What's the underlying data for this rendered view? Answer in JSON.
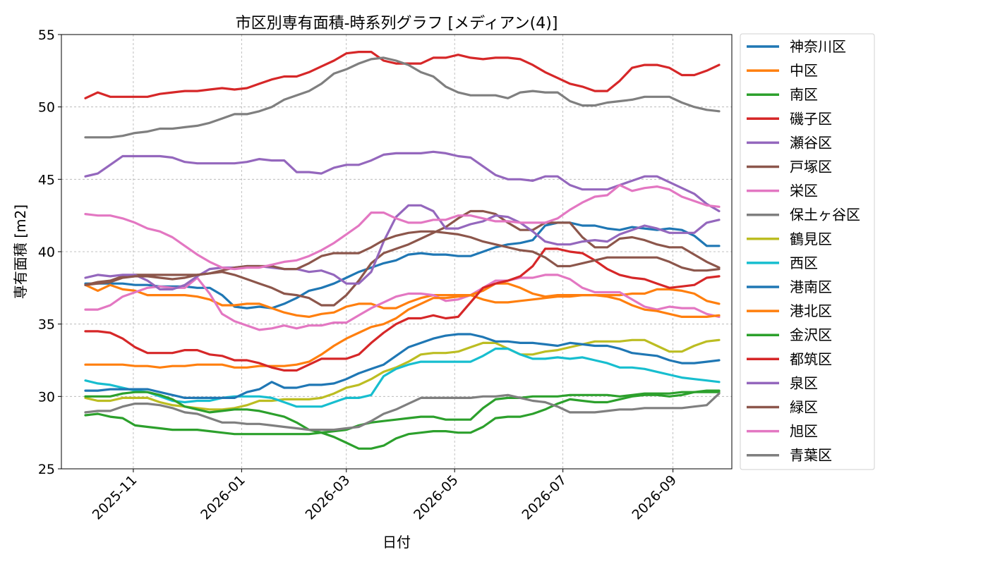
{
  "chart_data": {
    "type": "line",
    "title": "市区別専有面積-時系列グラフ [メディアン(4)]",
    "xlabel": "日付",
    "ylabel": "専有面積 [m2]",
    "ylim": [
      25,
      55
    ],
    "yticks": [
      25,
      30,
      35,
      40,
      45,
      50,
      55
    ],
    "xticks": [
      "2025-11",
      "2026-01",
      "2026-03",
      "2026-05",
      "2026-07",
      "2026-09"
    ],
    "grid": true,
    "legend_position": "outside-right",
    "x": [
      "2025-10-05",
      "2025-10-12",
      "2025-10-19",
      "2025-10-26",
      "2025-11-02",
      "2025-11-09",
      "2025-11-16",
      "2025-11-23",
      "2025-11-30",
      "2025-12-07",
      "2025-12-14",
      "2025-12-21",
      "2025-12-28",
      "2026-01-04",
      "2026-01-11",
      "2026-01-18",
      "2026-01-25",
      "2026-02-01",
      "2026-02-08",
      "2026-02-15",
      "2026-02-22",
      "2026-03-01",
      "2026-03-08",
      "2026-03-15",
      "2026-03-22",
      "2026-03-29",
      "2026-04-05",
      "2026-04-12",
      "2026-04-19",
      "2026-04-26",
      "2026-05-03",
      "2026-05-10",
      "2026-05-17",
      "2026-05-24",
      "2026-05-31",
      "2026-06-07",
      "2026-06-14",
      "2026-06-21",
      "2026-06-28",
      "2026-07-05",
      "2026-07-12",
      "2026-07-19",
      "2026-07-26",
      "2026-08-02",
      "2026-08-09",
      "2026-08-16",
      "2026-08-23",
      "2026-08-30",
      "2026-09-06",
      "2026-09-13",
      "2026-09-20",
      "2026-09-27"
    ],
    "series": [
      {
        "name": "神奈川区",
        "color": "#1f77b4",
        "values": [
          37.8,
          37.8,
          37.8,
          37.8,
          37.7,
          37.7,
          37.6,
          37.6,
          37.6,
          37.5,
          37.5,
          37.0,
          36.2,
          36.1,
          36.2,
          36.1,
          36.4,
          36.8,
          37.3,
          37.5,
          37.8,
          38.2,
          38.6,
          38.9,
          39.2,
          39.4,
          39.8,
          39.9,
          39.8,
          39.8,
          39.7,
          39.7,
          40.0,
          40.3,
          40.5,
          40.6,
          40.8,
          41.8,
          42.0,
          42.0,
          41.8,
          41.8,
          41.6,
          41.5,
          41.7,
          41.6,
          41.5,
          41.6,
          41.5,
          41.1,
          40.4,
          40.4
        ]
      },
      {
        "name": "中区",
        "color": "#ff7f0e",
        "values": [
          37.7,
          37.3,
          37.7,
          37.4,
          37.3,
          37.0,
          37.0,
          37.0,
          37.0,
          36.9,
          36.7,
          36.3,
          36.3,
          36.4,
          36.4,
          36.1,
          35.8,
          35.6,
          35.5,
          35.7,
          35.8,
          36.2,
          36.4,
          36.4,
          36.1,
          36.1,
          36.5,
          36.8,
          37.0,
          37.0,
          37.0,
          37.0,
          36.7,
          36.5,
          36.5,
          36.6,
          36.7,
          36.8,
          36.9,
          36.9,
          37.0,
          37.0,
          37.0,
          37.0,
          37.1,
          37.1,
          37.4,
          37.4,
          37.3,
          37.1,
          36.6,
          36.4
        ]
      },
      {
        "name": "南区",
        "color": "#2ca02c",
        "values": [
          28.7,
          28.8,
          28.6,
          28.5,
          28.0,
          27.9,
          27.8,
          27.7,
          27.7,
          27.7,
          27.6,
          27.5,
          27.4,
          27.4,
          27.4,
          27.4,
          27.4,
          27.4,
          27.4,
          27.5,
          27.6,
          27.7,
          28.0,
          28.2,
          28.3,
          28.4,
          28.5,
          28.6,
          28.6,
          28.4,
          28.4,
          28.4,
          29.2,
          29.8,
          29.9,
          29.9,
          30.0,
          30.0,
          30.0,
          30.1,
          30.1,
          30.1,
          30.1,
          30.0,
          30.1,
          30.2,
          30.2,
          30.2,
          30.3,
          30.3,
          30.4,
          30.4
        ]
      },
      {
        "name": "磯子区",
        "color": "#d62728",
        "values": [
          50.6,
          51.0,
          50.7,
          50.7,
          50.7,
          50.7,
          50.9,
          51.0,
          51.1,
          51.1,
          51.2,
          51.3,
          51.2,
          51.3,
          51.6,
          51.9,
          52.1,
          52.1,
          52.4,
          52.8,
          53.2,
          53.7,
          53.8,
          53.8,
          53.2,
          53.0,
          53.0,
          53.0,
          53.4,
          53.4,
          53.6,
          53.4,
          53.3,
          53.4,
          53.4,
          53.3,
          52.9,
          52.4,
          52.0,
          51.6,
          51.4,
          51.1,
          51.1,
          51.8,
          52.7,
          52.9,
          52.9,
          52.7,
          52.2,
          52.2,
          52.5,
          52.9
        ]
      },
      {
        "name": "瀬谷区",
        "color": "#9467bd",
        "values": [
          45.2,
          45.4,
          46.0,
          46.6,
          46.6,
          46.6,
          46.6,
          46.5,
          46.2,
          46.1,
          46.1,
          46.1,
          46.1,
          46.2,
          46.4,
          46.3,
          46.3,
          45.5,
          45.5,
          45.4,
          45.8,
          46.0,
          46.0,
          46.3,
          46.7,
          46.8,
          46.8,
          46.8,
          46.9,
          46.8,
          46.6,
          46.5,
          45.9,
          45.3,
          45.0,
          45.0,
          44.9,
          45.2,
          45.2,
          44.6,
          44.3,
          44.3,
          44.3,
          44.6,
          44.9,
          45.2,
          45.2,
          44.8,
          44.4,
          44.0,
          43.3,
          42.8
        ]
      },
      {
        "name": "戸塚区",
        "color": "#8c564b",
        "values": [
          37.7,
          37.9,
          38.0,
          38.3,
          38.4,
          38.4,
          38.4,
          38.4,
          38.4,
          38.4,
          38.5,
          38.6,
          38.4,
          38.1,
          37.8,
          37.5,
          37.1,
          37.0,
          36.8,
          36.3,
          36.3,
          37.0,
          38.0,
          39.2,
          39.9,
          40.2,
          40.5,
          40.9,
          41.3,
          41.7,
          42.3,
          42.8,
          42.8,
          42.6,
          42.0,
          41.5,
          41.5,
          42.0,
          42.0,
          42.0,
          41.0,
          40.3,
          40.3,
          40.9,
          41.0,
          40.8,
          40.5,
          40.3,
          40.3,
          39.8,
          39.3,
          38.9
        ]
      },
      {
        "name": "栄区",
        "color": "#e377c2",
        "values": [
          36.0,
          36.0,
          36.3,
          36.9,
          37.2,
          37.5,
          37.6,
          37.5,
          37.5,
          38.2,
          37.1,
          35.7,
          35.2,
          34.9,
          34.6,
          34.7,
          34.9,
          34.7,
          34.9,
          34.9,
          35.1,
          35.1,
          35.6,
          36.1,
          36.5,
          36.9,
          37.1,
          37.1,
          37.0,
          36.6,
          36.7,
          37.0,
          37.5,
          38.0,
          38.0,
          38.2,
          38.2,
          38.4,
          38.4,
          38.1,
          37.5,
          37.2,
          37.2,
          37.2,
          36.7,
          36.2,
          36.0,
          36.2,
          36.1,
          36.1,
          35.7,
          35.5
        ]
      },
      {
        "name": "保土ヶ谷区",
        "color": "#7f7f7f",
        "values": [
          47.9,
          47.9,
          47.9,
          48.0,
          48.2,
          48.3,
          48.5,
          48.5,
          48.6,
          48.7,
          48.9,
          49.2,
          49.5,
          49.5,
          49.7,
          50.0,
          50.5,
          50.8,
          51.1,
          51.6,
          52.3,
          52.6,
          53.0,
          53.3,
          53.4,
          53.2,
          52.9,
          52.4,
          52.1,
          51.4,
          51.0,
          50.8,
          50.8,
          50.8,
          50.6,
          51.0,
          51.1,
          51.0,
          51.0,
          50.4,
          50.1,
          50.1,
          50.3,
          50.4,
          50.5,
          50.7,
          50.7,
          50.7,
          50.3,
          50.0,
          49.8,
          49.7
        ]
      },
      {
        "name": "鶴見区",
        "color": "#bcbd22",
        "values": [
          29.9,
          29.7,
          29.7,
          29.9,
          29.9,
          29.9,
          29.6,
          29.4,
          29.3,
          29.2,
          29.1,
          29.1,
          29.2,
          29.4,
          29.7,
          29.7,
          29.8,
          29.8,
          29.8,
          29.9,
          30.2,
          30.6,
          30.8,
          31.2,
          31.7,
          32.0,
          32.4,
          32.9,
          33.0,
          33.0,
          33.1,
          33.4,
          33.7,
          33.7,
          33.3,
          32.9,
          32.9,
          33.1,
          33.2,
          33.4,
          33.6,
          33.8,
          33.8,
          33.8,
          33.9,
          33.9,
          33.5,
          33.1,
          33.1,
          33.5,
          33.8,
          33.9
        ]
      },
      {
        "name": "西区",
        "color": "#17becf",
        "values": [
          31.1,
          30.9,
          30.8,
          30.6,
          30.4,
          30.3,
          30.0,
          29.7,
          29.6,
          29.7,
          29.7,
          29.9,
          30.0,
          30.0,
          30.0,
          29.9,
          29.6,
          29.3,
          29.3,
          29.3,
          29.6,
          29.9,
          29.9,
          30.1,
          31.4,
          31.9,
          32.2,
          32.4,
          32.4,
          32.4,
          32.4,
          32.4,
          32.8,
          33.3,
          33.3,
          32.9,
          32.6,
          32.6,
          32.7,
          32.6,
          32.7,
          32.5,
          32.3,
          32.0,
          32.0,
          31.9,
          31.7,
          31.5,
          31.3,
          31.2,
          31.1,
          31.0
        ]
      },
      {
        "name": "港南区",
        "color": "#1f77b4",
        "values": [
          30.4,
          30.4,
          30.5,
          30.5,
          30.5,
          30.5,
          30.3,
          30.1,
          29.9,
          29.9,
          29.9,
          29.9,
          29.9,
          30.3,
          30.5,
          31.0,
          30.6,
          30.6,
          30.8,
          30.8,
          30.9,
          31.2,
          31.6,
          31.9,
          32.2,
          32.8,
          33.4,
          33.7,
          34.0,
          34.2,
          34.3,
          34.3,
          34.1,
          33.8,
          33.8,
          33.7,
          33.7,
          33.6,
          33.5,
          33.7,
          33.6,
          33.5,
          33.5,
          33.3,
          33.0,
          32.9,
          32.8,
          32.5,
          32.3,
          32.3,
          32.4,
          32.5
        ]
      },
      {
        "name": "港北区",
        "color": "#ff7f0e",
        "values": [
          32.2,
          32.2,
          32.2,
          32.2,
          32.1,
          32.1,
          32.0,
          32.1,
          32.1,
          32.2,
          32.2,
          32.2,
          32.0,
          32.0,
          32.1,
          32.1,
          32.1,
          32.2,
          32.4,
          32.9,
          33.5,
          34.0,
          34.4,
          34.8,
          35.0,
          35.4,
          36.0,
          36.4,
          36.8,
          36.8,
          36.9,
          37.0,
          37.3,
          37.8,
          37.8,
          37.5,
          37.1,
          36.9,
          37.0,
          37.0,
          37.0,
          37.0,
          36.9,
          36.7,
          36.3,
          36.0,
          35.9,
          35.7,
          35.5,
          35.5,
          35.5,
          35.6
        ]
      },
      {
        "name": "金沢区",
        "color": "#2ca02c",
        "values": [
          30.0,
          30.0,
          30.0,
          30.2,
          30.3,
          30.3,
          30.1,
          29.8,
          29.3,
          29.1,
          28.9,
          29.0,
          29.1,
          29.1,
          29.0,
          28.8,
          28.6,
          28.2,
          27.7,
          27.5,
          27.2,
          26.8,
          26.4,
          26.4,
          26.6,
          27.1,
          27.4,
          27.5,
          27.6,
          27.6,
          27.5,
          27.5,
          27.9,
          28.5,
          28.6,
          28.6,
          28.8,
          29.1,
          29.5,
          29.8,
          29.7,
          29.6,
          29.6,
          29.8,
          30.0,
          30.1,
          30.1,
          30.0,
          30.1,
          30.3,
          30.3,
          30.3
        ]
      },
      {
        "name": "都筑区",
        "color": "#d62728",
        "values": [
          34.5,
          34.5,
          34.4,
          34.0,
          33.4,
          33.0,
          33.0,
          33.0,
          33.2,
          33.2,
          32.9,
          32.8,
          32.5,
          32.5,
          32.3,
          32.0,
          31.8,
          31.8,
          32.2,
          32.6,
          32.6,
          32.6,
          32.9,
          33.7,
          34.4,
          35.0,
          35.4,
          35.4,
          35.6,
          35.4,
          35.5,
          36.5,
          37.5,
          37.8,
          38.0,
          38.3,
          39.0,
          40.2,
          40.2,
          40.0,
          39.9,
          39.4,
          38.8,
          38.4,
          38.2,
          38.1,
          37.8,
          37.5,
          37.6,
          37.7,
          38.2,
          38.3
        ]
      },
      {
        "name": "泉区",
        "color": "#9467bd",
        "values": [
          38.2,
          38.4,
          38.3,
          38.4,
          38.4,
          38.0,
          37.4,
          37.4,
          37.7,
          38.3,
          38.8,
          38.9,
          38.9,
          39.0,
          39.0,
          38.9,
          38.8,
          38.8,
          38.6,
          38.7,
          38.4,
          37.8,
          37.8,
          38.6,
          40.7,
          42.4,
          43.2,
          43.2,
          42.8,
          41.6,
          41.6,
          41.9,
          42.1,
          42.5,
          42.4,
          42.0,
          41.4,
          40.7,
          40.5,
          40.5,
          40.7,
          40.8,
          40.7,
          41.2,
          41.5,
          41.8,
          41.6,
          41.3,
          41.3,
          41.3,
          42.0,
          42.2
        ]
      },
      {
        "name": "緑区",
        "color": "#8c564b",
        "values": [
          37.7,
          37.8,
          37.9,
          38.2,
          38.3,
          38.3,
          38.2,
          38.1,
          38.2,
          38.4,
          38.5,
          38.7,
          38.9,
          39.0,
          39.0,
          39.0,
          38.8,
          38.8,
          39.2,
          39.7,
          39.9,
          39.9,
          39.9,
          40.3,
          40.8,
          41.1,
          41.3,
          41.4,
          41.4,
          41.3,
          41.2,
          41.0,
          40.7,
          40.5,
          40.3,
          40.1,
          40.0,
          39.6,
          39.0,
          39.0,
          39.2,
          39.4,
          39.6,
          39.6,
          39.6,
          39.6,
          39.6,
          39.3,
          38.9,
          38.7,
          38.7,
          38.8
        ]
      },
      {
        "name": "旭区",
        "color": "#e377c2",
        "values": [
          42.6,
          42.5,
          42.5,
          42.3,
          42.0,
          41.6,
          41.4,
          41.0,
          40.4,
          39.8,
          39.3,
          38.9,
          38.8,
          38.9,
          38.9,
          39.1,
          39.3,
          39.4,
          39.7,
          40.1,
          40.6,
          41.2,
          41.8,
          42.7,
          42.7,
          42.3,
          42.0,
          42.0,
          42.2,
          42.2,
          42.5,
          42.5,
          42.3,
          42.1,
          42.1,
          42.0,
          42.0,
          42.0,
          42.3,
          42.9,
          43.4,
          43.8,
          43.9,
          44.6,
          44.2,
          44.4,
          44.5,
          44.3,
          43.8,
          43.5,
          43.2,
          43.1
        ]
      },
      {
        "name": "青葉区",
        "color": "#7f7f7f",
        "values": [
          28.9,
          29.0,
          29.0,
          29.3,
          29.5,
          29.5,
          29.4,
          29.2,
          28.9,
          28.8,
          28.5,
          28.2,
          28.2,
          28.1,
          28.1,
          28.0,
          27.9,
          27.8,
          27.7,
          27.7,
          27.7,
          27.8,
          27.9,
          28.3,
          28.8,
          29.1,
          29.5,
          29.9,
          29.9,
          29.9,
          29.9,
          29.9,
          30.0,
          30.0,
          30.1,
          29.9,
          29.7,
          29.6,
          29.3,
          28.9,
          28.9,
          28.9,
          29.0,
          29.1,
          29.1,
          29.2,
          29.2,
          29.2,
          29.2,
          29.3,
          29.4,
          30.2
        ]
      }
    ]
  }
}
